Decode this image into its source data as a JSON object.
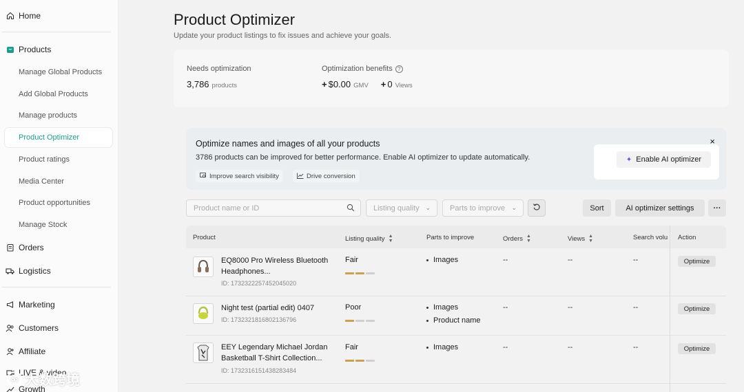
{
  "sidebar": {
    "home": "Home",
    "products": "Products",
    "sub_items": [
      "Manage Global Products",
      "Add Global Products",
      "Manage products",
      "Product Optimizer",
      "Product ratings",
      "Media Center",
      "Product opportunities",
      "Manage Stock"
    ],
    "active_index": 3,
    "orders": "Orders",
    "logistics": "Logistics",
    "marketing": "Marketing",
    "customers": "Customers",
    "affiliate": "Affiliate",
    "live_video": "LIVE & video",
    "growth": "Growth"
  },
  "header": {
    "title": "Product Optimizer",
    "subtitle": "Update your product listings to fix issues and achieve your goals."
  },
  "stats": {
    "needs_label": "Needs optimization",
    "needs_value": "3,786",
    "needs_unit": "products",
    "benefits_label": "Optimization benefits",
    "gmv_value": "$0.00",
    "gmv_unit": "GMV",
    "views_value": "0",
    "views_unit": "Views"
  },
  "banner": {
    "title": "Optimize names and images of all your products",
    "description": "3786 products can be improved for better performance. Enable AI optimizer to update automatically.",
    "chip1": "Improve search visibility",
    "chip2": "Drive conversion",
    "close": "×",
    "cta": "Enable AI optimizer"
  },
  "toolbar": {
    "search_placeholder": "Product name or ID",
    "listing_quality": "Listing quality",
    "parts_to_improve": "Parts to improve",
    "sort": "Sort",
    "ai_settings": "AI optimizer settings",
    "more": "···"
  },
  "table": {
    "headers": [
      "Product",
      "Listing quality",
      "Parts to improve",
      "Orders",
      "Views",
      "Search volu",
      "Action"
    ],
    "rows": [
      {
        "name": "EQ8000 Pro Wireless Bluetooth Headphones...",
        "id": "ID: 1732322257452045020",
        "quality": "Fair",
        "quality_level": 2,
        "parts": [
          "Images"
        ],
        "orders": "--",
        "views": "--",
        "search": "--",
        "action": "Optimize"
      },
      {
        "name": "Night test (partial edit) 0407",
        "id": "ID: 1732321816802136796",
        "quality": "Poor",
        "quality_level": 1,
        "parts": [
          "Images",
          "Product name"
        ],
        "orders": "--",
        "views": "--",
        "search": "--",
        "action": "Optimize"
      },
      {
        "name": "EEY Legendary Michael Jordan Basketball T-Shirt Collection...",
        "id": "ID: 1732316151438283484",
        "quality": "Fair",
        "quality_level": 2,
        "parts": [
          "Images"
        ],
        "orders": "--",
        "views": "--",
        "search": "--",
        "action": "Optimize"
      }
    ]
  },
  "watermark": "大数跨境"
}
